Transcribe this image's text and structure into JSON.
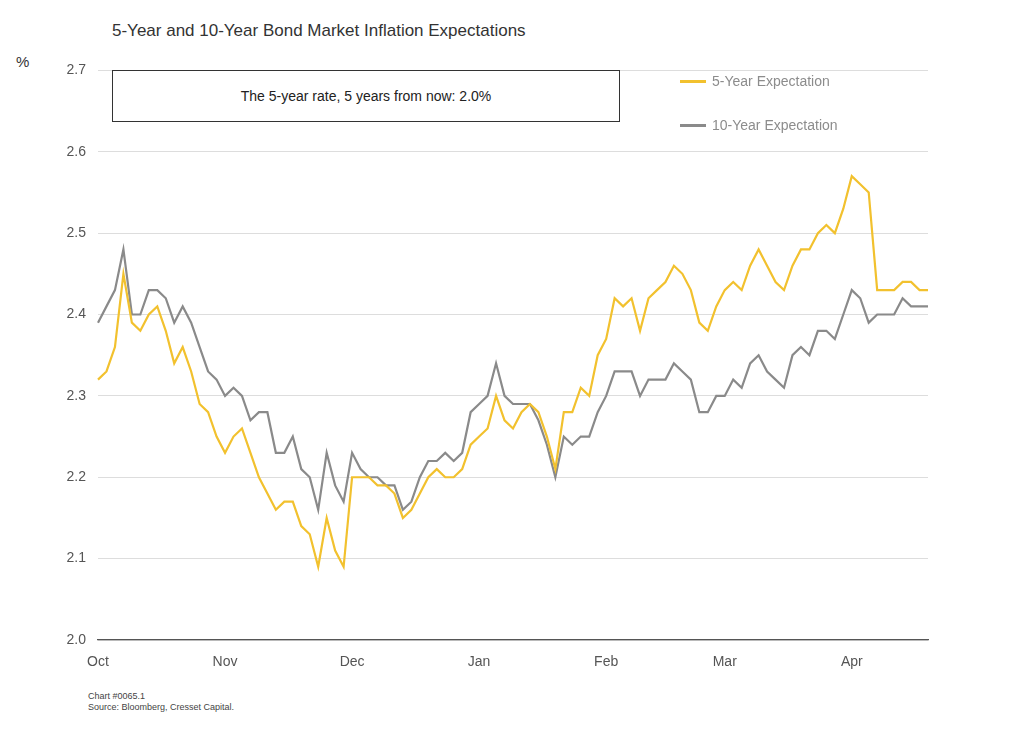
{
  "chart_data": {
    "type": "line",
    "title": "5-Year and 10-Year Bond Market Inflation Expectations",
    "y_label": "%",
    "annotation": "The 5-year rate, 5 years from now: 2.0%",
    "footnotes": [
      "Chart #0065.1",
      "Source: Bloomberg, Cresset Capital."
    ],
    "categories": [
      "Oct",
      null,
      null,
      null,
      null,
      null,
      null,
      null,
      null,
      null,
      null,
      null,
      null,
      null,
      null,
      "Nov",
      null,
      null,
      null,
      null,
      null,
      null,
      null,
      null,
      null,
      null,
      null,
      null,
      null,
      null,
      "Dec",
      null,
      null,
      null,
      null,
      null,
      null,
      null,
      null,
      null,
      null,
      null,
      null,
      null,
      null,
      "Jan",
      null,
      null,
      null,
      null,
      null,
      null,
      null,
      null,
      null,
      null,
      null,
      null,
      null,
      null,
      "Feb",
      null,
      null,
      null,
      null,
      null,
      null,
      null,
      null,
      null,
      null,
      null,
      null,
      null,
      "Mar",
      null,
      null,
      null,
      null,
      null,
      null,
      null,
      null,
      null,
      null,
      null,
      null,
      null,
      null,
      "Apr",
      null,
      null,
      null,
      null,
      null,
      null,
      null,
      null,
      null
    ],
    "series": [
      {
        "name": "5-Year Expectation",
        "color": "#f2c12e",
        "values": [
          2.32,
          2.33,
          2.36,
          2.45,
          2.39,
          2.38,
          2.4,
          2.41,
          2.38,
          2.34,
          2.36,
          2.33,
          2.29,
          2.28,
          2.25,
          2.23,
          2.25,
          2.26,
          2.23,
          2.2,
          2.18,
          2.16,
          2.17,
          2.17,
          2.14,
          2.13,
          2.09,
          2.15,
          2.11,
          2.09,
          2.2,
          2.2,
          2.2,
          2.19,
          2.19,
          2.18,
          2.15,
          2.16,
          2.18,
          2.2,
          2.21,
          2.2,
          2.2,
          2.21,
          2.24,
          2.25,
          2.26,
          2.3,
          2.27,
          2.26,
          2.28,
          2.29,
          2.28,
          2.25,
          2.21,
          2.28,
          2.28,
          2.31,
          2.3,
          2.35,
          2.37,
          2.42,
          2.41,
          2.42,
          2.38,
          2.42,
          2.43,
          2.44,
          2.46,
          2.45,
          2.43,
          2.39,
          2.38,
          2.41,
          2.43,
          2.44,
          2.43,
          2.46,
          2.48,
          2.46,
          2.44,
          2.43,
          2.46,
          2.48,
          2.48,
          2.5,
          2.51,
          2.5,
          2.53,
          2.57,
          2.56,
          2.55,
          2.43,
          2.43,
          2.43,
          2.44,
          2.44,
          2.43,
          2.43
        ]
      },
      {
        "name": "10-Year Expectation",
        "color": "#8a8a8a",
        "values": [
          2.39,
          2.41,
          2.43,
          2.48,
          2.4,
          2.4,
          2.43,
          2.43,
          2.42,
          2.39,
          2.41,
          2.39,
          2.36,
          2.33,
          2.32,
          2.3,
          2.31,
          2.3,
          2.27,
          2.28,
          2.28,
          2.23,
          2.23,
          2.25,
          2.21,
          2.2,
          2.16,
          2.23,
          2.19,
          2.17,
          2.23,
          2.21,
          2.2,
          2.2,
          2.19,
          2.19,
          2.16,
          2.17,
          2.2,
          2.22,
          2.22,
          2.23,
          2.22,
          2.23,
          2.28,
          2.29,
          2.3,
          2.34,
          2.3,
          2.29,
          2.29,
          2.29,
          2.27,
          2.24,
          2.2,
          2.25,
          2.24,
          2.25,
          2.25,
          2.28,
          2.3,
          2.33,
          2.33,
          2.33,
          2.3,
          2.32,
          2.32,
          2.32,
          2.34,
          2.33,
          2.32,
          2.28,
          2.28,
          2.3,
          2.3,
          2.32,
          2.31,
          2.34,
          2.35,
          2.33,
          2.32,
          2.31,
          2.35,
          2.36,
          2.35,
          2.38,
          2.38,
          2.37,
          2.4,
          2.43,
          2.42,
          2.39,
          2.4,
          2.4,
          2.4,
          2.42,
          2.41,
          2.41,
          2.41
        ]
      }
    ],
    "ylim": [
      2.0,
      2.7
    ],
    "yticks": [
      {
        "value": 2.0,
        "label": "2.0"
      },
      2.1,
      2.2,
      2.3,
      2.4,
      2.5,
      2.6,
      2.7
    ],
    "grid": true,
    "legend": "upper right"
  }
}
